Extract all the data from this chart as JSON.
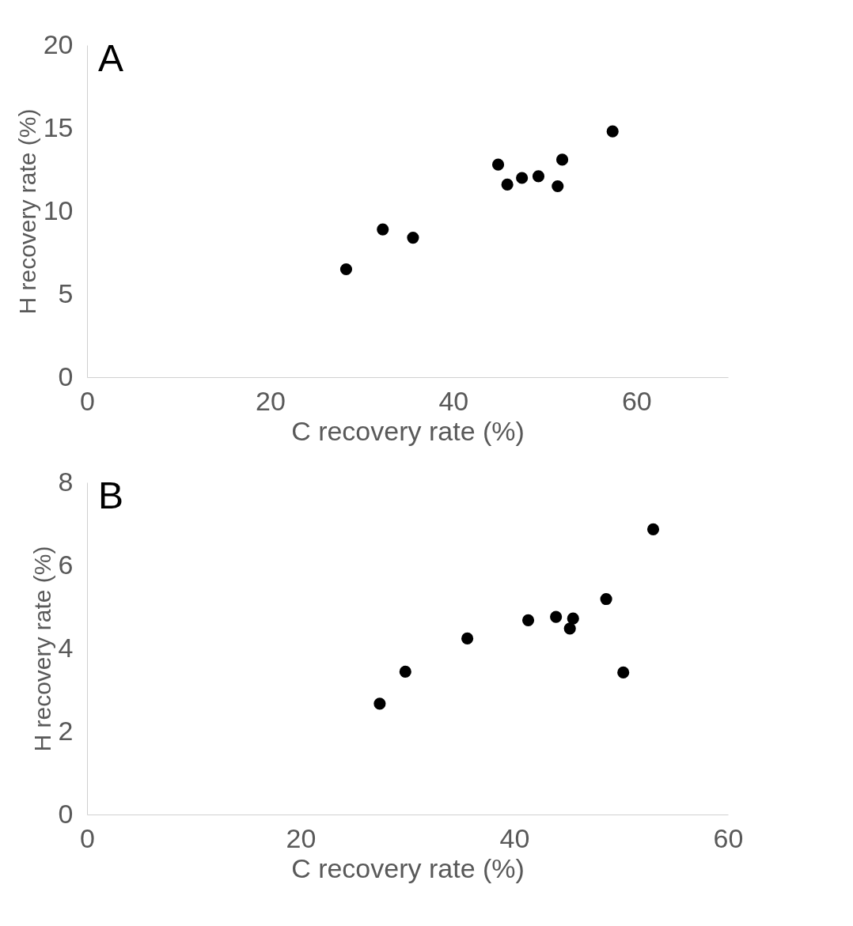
{
  "chart_data": [
    {
      "type": "scatter",
      "title": "A",
      "xlabel": "C recovery rate (%)",
      "ylabel": "H recovery rate (%)",
      "xlim": [
        0,
        70
      ],
      "xticks": [
        0,
        20,
        40,
        60
      ],
      "ylim": [
        0,
        20
      ],
      "yticks": [
        0,
        5,
        10,
        15,
        20
      ],
      "grid": false,
      "series": [
        {
          "color": "#000000",
          "x": [
            28.3,
            32.3,
            35.6,
            44.9,
            45.9,
            47.5,
            49.3,
            51.4,
            51.9,
            57.4
          ],
          "values": [
            6.5,
            8.9,
            8.4,
            12.8,
            11.6,
            12.0,
            12.1,
            11.5,
            13.1,
            14.8
          ]
        }
      ]
    },
    {
      "type": "scatter",
      "title": "B",
      "xlabel": "C recovery rate (%)",
      "ylabel": "H recovery rate (%)",
      "xlim": [
        0,
        60
      ],
      "xticks": [
        0,
        20,
        40,
        60
      ],
      "ylim": [
        0,
        8
      ],
      "yticks": [
        0,
        2,
        4,
        6,
        8
      ],
      "grid": false,
      "series": [
        {
          "color": "#000000",
          "x": [
            27.4,
            29.8,
            35.6,
            41.3,
            43.9,
            45.5,
            45.2,
            48.6,
            50.2,
            53.0
          ],
          "values": [
            2.67,
            3.44,
            4.24,
            4.68,
            4.76,
            4.72,
            4.48,
            5.19,
            3.42,
            6.87
          ]
        }
      ]
    }
  ]
}
